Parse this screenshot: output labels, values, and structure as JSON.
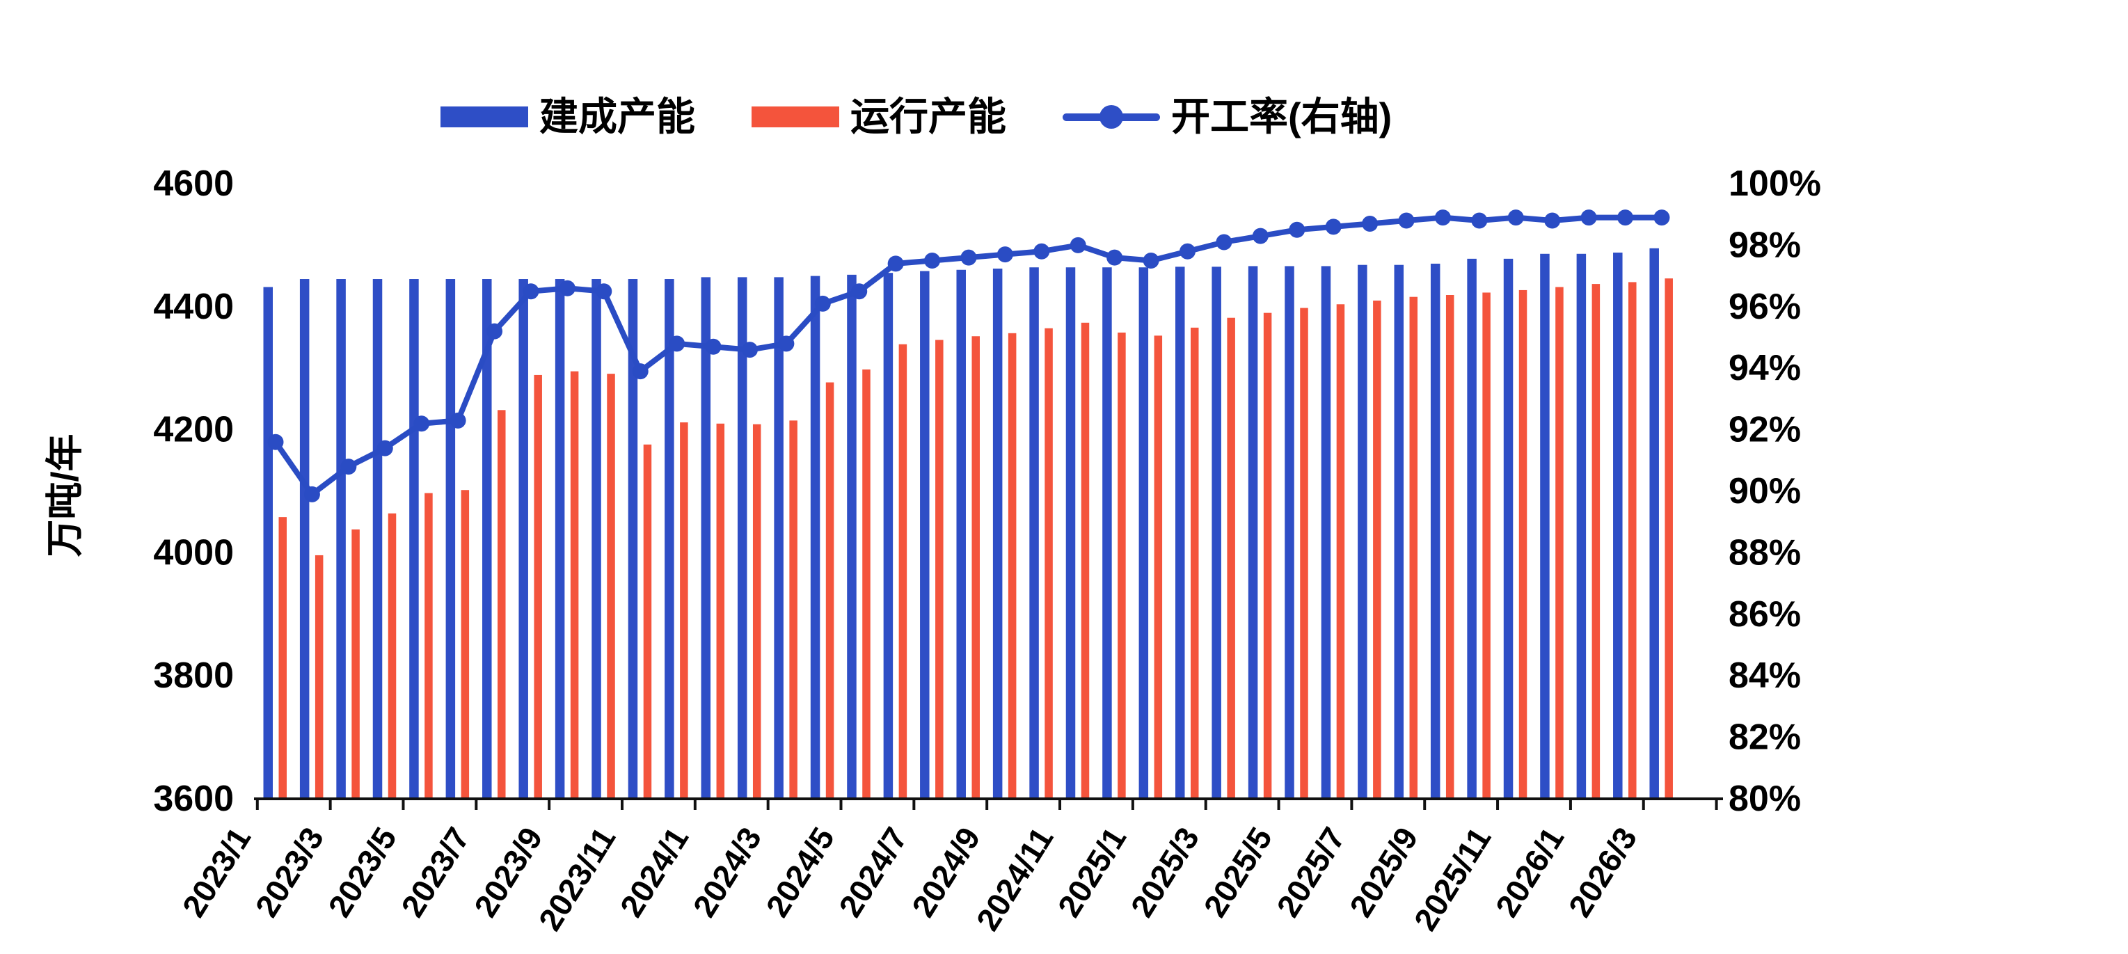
{
  "page": {
    "background": "#ffffff"
  },
  "colors": {
    "built_blue": "#2e4ec6",
    "operating_red": "#f4543c",
    "rate_line_blue": "#2a4cc4",
    "axis_black": "#111111",
    "text_black": "#000000"
  },
  "legend": {
    "position": "top",
    "items": [
      {
        "label": "建成产能",
        "type": "bar",
        "color": "#2e4ec6"
      },
      {
        "label": "运行产能",
        "type": "bar",
        "color": "#f4543c"
      },
      {
        "label": "开工率(右轴)",
        "type": "line-marker",
        "color": "#2a4cc4"
      }
    ]
  },
  "chart_data": {
    "type": "bar",
    "subtype": "dual-axis-bar-line-combo",
    "title": "",
    "grid": "off",
    "legend_position": "top",
    "categories": [
      "2023/1",
      "2023/2",
      "2023/3",
      "2023/4",
      "2023/5",
      "2023/6",
      "2023/7",
      "2023/8",
      "2023/9",
      "2023/10",
      "2023/11",
      "2023/12",
      "2024/1",
      "2024/2",
      "2024/3",
      "2024/4",
      "2024/5",
      "2024/6",
      "2024/7",
      "2024/8",
      "2024/9",
      "2024/10",
      "2024/11",
      "2024/12",
      "2025/1",
      "2025/2",
      "2025/3",
      "2025/4",
      "2025/5",
      "2025/6",
      "2025/7",
      "2025/8",
      "2025/9",
      "2025/10",
      "2025/11",
      "2025/12",
      "2026/1",
      "2026/2",
      "2026/3"
    ],
    "series": [
      {
        "name": "建成产能",
        "type": "bar",
        "axis": "left",
        "unit": "万吨/年",
        "color": "#2e4ec6",
        "values": [
          4432,
          4445,
          4445,
          4445,
          4445,
          4445,
          4445,
          4445,
          4445,
          4445,
          4445,
          4445,
          4448,
          4448,
          4448,
          4450,
          4452,
          4455,
          4458,
          4460,
          4462,
          4464,
          4464,
          4464,
          4464,
          4465,
          4465,
          4466,
          4466,
          4466,
          4468,
          4468,
          4470,
          4478,
          4478,
          4486,
          4486,
          4488,
          4495
        ]
      },
      {
        "name": "运行产能",
        "type": "bar",
        "axis": "left",
        "unit": "万吨/年",
        "color": "#f4543c",
        "values": [
          4058,
          3996,
          4038,
          4064,
          4097,
          4102,
          4232,
          4289,
          4295,
          4291,
          4176,
          4212,
          4210,
          4209,
          4215,
          4277,
          4298,
          4339,
          4346,
          4352,
          4357,
          4365,
          4374,
          4358,
          4353,
          4366,
          4382,
          4390,
          4398,
          4404,
          4410,
          4416,
          4419,
          4423,
          4427,
          4432,
          4437,
          4440,
          4446
        ]
      },
      {
        "name": "开工率(右轴)",
        "type": "line",
        "axis": "right",
        "unit": "%",
        "color": "#2a4cc4",
        "values": [
          91.6,
          89.9,
          90.8,
          91.4,
          92.2,
          92.3,
          95.2,
          96.5,
          96.6,
          96.5,
          93.9,
          94.8,
          94.7,
          94.6,
          94.8,
          96.1,
          96.5,
          97.4,
          97.5,
          97.6,
          97.7,
          97.8,
          98.0,
          97.6,
          97.5,
          97.8,
          98.1,
          98.3,
          98.5,
          98.6,
          98.7,
          98.8,
          98.9,
          98.8,
          98.9,
          98.8,
          98.9,
          98.9,
          98.9
        ]
      }
    ],
    "left_axis": {
      "label": "万吨/年",
      "min": 3600,
      "max": 4600,
      "tick_step": 200,
      "tick_labels": [
        "4600",
        "4400",
        "4200",
        "4000",
        "3800",
        "3600"
      ]
    },
    "right_axis": {
      "label": "",
      "min": 80,
      "max": 100,
      "tick_step": 2,
      "tick_labels": [
        "100%",
        "98%",
        "96%",
        "94%",
        "92%",
        "90%",
        "88%",
        "86%",
        "84%",
        "82%",
        "80%"
      ]
    },
    "x_axis": {
      "label_every_n_months": 2,
      "shown_tick_labels": [
        "2023/1",
        "2023/3",
        "2023/5",
        "2023/7",
        "2023/9",
        "2023/11",
        "2024/1",
        "2024/3",
        "2024/5",
        "2024/7",
        "2024/9",
        "2024/11",
        "2025/1",
        "2025/3",
        "2025/5",
        "2025/7",
        "2025/9",
        "2025/11",
        "2026/1",
        "2026/3"
      ]
    }
  }
}
